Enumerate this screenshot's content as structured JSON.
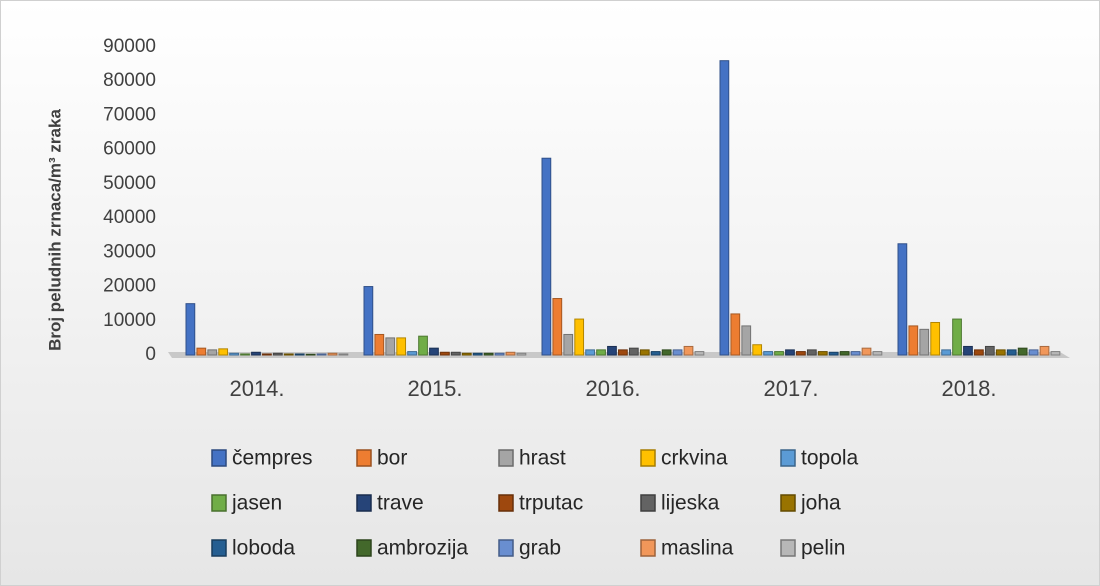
{
  "chart_data": {
    "type": "bar",
    "y_label": "Broj peludnih zrnaca/m³ zraka",
    "categories": [
      "2014.",
      "2015.",
      "2016.",
      "2017.",
      "2018."
    ],
    "ylim": [
      0,
      90000
    ],
    "yticks": [
      0,
      10000,
      20000,
      30000,
      40000,
      50000,
      60000,
      70000,
      80000,
      90000
    ],
    "grid": false,
    "legend": "bottom",
    "series": [
      {
        "name": "čempres",
        "color": "#4472c4",
        "values": [
          15000,
          20000,
          57500,
          86000,
          32500
        ]
      },
      {
        "name": "bor",
        "color": "#ed7d31",
        "values": [
          2000,
          6000,
          16500,
          12000,
          8500
        ]
      },
      {
        "name": "hrast",
        "color": "#a5a5a5",
        "values": [
          1500,
          5000,
          6000,
          8500,
          7500
        ]
      },
      {
        "name": "crkvina",
        "color": "#ffc000",
        "values": [
          1800,
          5000,
          10500,
          3000,
          9500
        ]
      },
      {
        "name": "topola",
        "color": "#5b9bd5",
        "values": [
          500,
          1000,
          1500,
          1000,
          1500
        ]
      },
      {
        "name": "jasen",
        "color": "#70ad47",
        "values": [
          300,
          5500,
          1500,
          1000,
          10500
        ]
      },
      {
        "name": "trave",
        "color": "#264478",
        "values": [
          800,
          2000,
          2500,
          1500,
          2500
        ]
      },
      {
        "name": "trputac",
        "color": "#9e480e",
        "values": [
          300,
          800,
          1500,
          1000,
          1500
        ]
      },
      {
        "name": "lijeska",
        "color": "#636363",
        "values": [
          500,
          800,
          2000,
          1500,
          2500
        ]
      },
      {
        "name": "joha",
        "color": "#997300",
        "values": [
          300,
          500,
          1500,
          1000,
          1500
        ]
      },
      {
        "name": "loboda",
        "color": "#255e91",
        "values": [
          300,
          500,
          1000,
          800,
          1500
        ]
      },
      {
        "name": "ambrozija",
        "color": "#43682b",
        "values": [
          200,
          500,
          1500,
          1000,
          2000
        ]
      },
      {
        "name": "grab",
        "color": "#698ed0",
        "values": [
          300,
          500,
          1500,
          1000,
          1500
        ]
      },
      {
        "name": "maslina",
        "color": "#f1975a",
        "values": [
          500,
          800,
          2500,
          2000,
          2500
        ]
      },
      {
        "name": "pelin",
        "color": "#b7b7b7",
        "values": [
          300,
          500,
          1000,
          1000,
          1000
        ]
      }
    ]
  }
}
